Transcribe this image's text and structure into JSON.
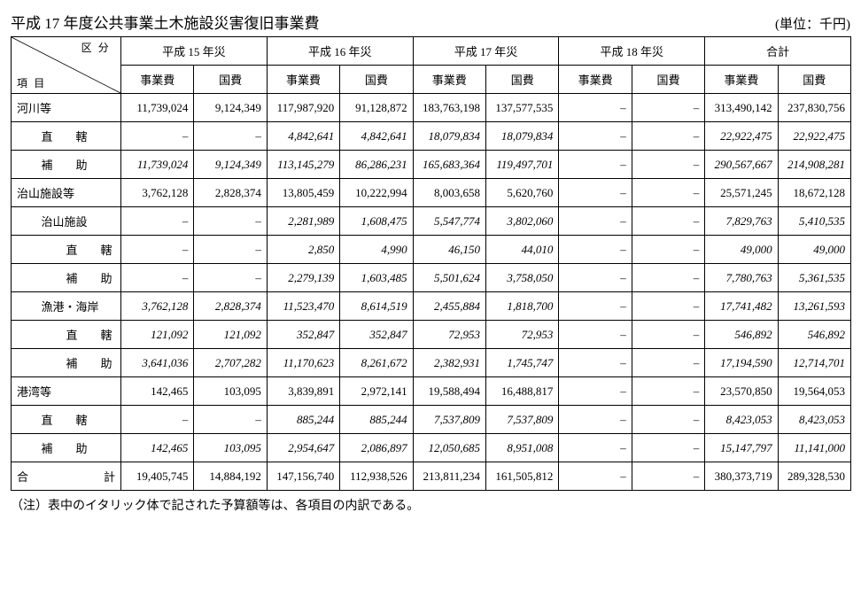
{
  "title": "平成 17 年度公共事業土木施設災害復旧事業費",
  "unit": "(単位：千円)",
  "diag_tr": "区分",
  "diag_bl": "項目",
  "year_headers": [
    "平成 15 年災",
    "平成 16 年災",
    "平成 17 年災",
    "平成 18 年災",
    "合計"
  ],
  "sub_headers": [
    "事業費",
    "国費",
    "事業費",
    "国費",
    "事業費",
    "国費",
    "事業費",
    "国費",
    "事業費",
    "国費"
  ],
  "rows": [
    {
      "stub_span": 3,
      "label": "河川等",
      "italic": false,
      "cells": [
        "11,739,024",
        "9,124,349",
        "117,987,920",
        "91,128,872",
        "183,763,198",
        "137,577,535",
        "–",
        "–",
        "313,490,142",
        "237,830,756"
      ]
    },
    {
      "stub_indent": 1,
      "stub_span": 2,
      "label": "直　　轄",
      "italic": true,
      "cells": [
        "–",
        "–",
        "4,842,641",
        "4,842,641",
        "18,079,834",
        "18,079,834",
        "–",
        "–",
        "22,922,475",
        "22,922,475"
      ]
    },
    {
      "stub_indent": 1,
      "stub_span": 2,
      "label": "補　　助",
      "italic": true,
      "cells": [
        "11,739,024",
        "9,124,349",
        "113,145,279",
        "86,286,231",
        "165,683,364",
        "119,497,701",
        "–",
        "–",
        "290,567,667",
        "214,908,281"
      ]
    },
    {
      "stub_span": 3,
      "label": "治山施設等",
      "italic": false,
      "cells": [
        "3,762,128",
        "2,828,374",
        "13,805,459",
        "10,222,994",
        "8,003,658",
        "5,620,760",
        "–",
        "–",
        "25,571,245",
        "18,672,128"
      ]
    },
    {
      "stub_indent": 1,
      "stub_span": 2,
      "label": "治山施設",
      "italic": true,
      "cells": [
        "–",
        "–",
        "2,281,989",
        "1,608,475",
        "5,547,774",
        "3,802,060",
        "–",
        "–",
        "7,829,763",
        "5,410,535"
      ]
    },
    {
      "stub_indent": 2,
      "stub_span": 1,
      "label": "直　　轄",
      "italic": true,
      "cells": [
        "–",
        "–",
        "2,850",
        "4,990",
        "46,150",
        "44,010",
        "–",
        "–",
        "49,000",
        "49,000"
      ]
    },
    {
      "stub_indent": 2,
      "stub_span": 1,
      "label": "補　　助",
      "italic": true,
      "cells": [
        "–",
        "–",
        "2,279,139",
        "1,603,485",
        "5,501,624",
        "3,758,050",
        "–",
        "–",
        "7,780,763",
        "5,361,535"
      ]
    },
    {
      "stub_indent": 1,
      "stub_span": 2,
      "label": "漁港・海岸",
      "italic": true,
      "cells": [
        "3,762,128",
        "2,828,374",
        "11,523,470",
        "8,614,519",
        "2,455,884",
        "1,818,700",
        "–",
        "–",
        "17,741,482",
        "13,261,593"
      ]
    },
    {
      "stub_indent": 2,
      "stub_span": 1,
      "label": "直　　轄",
      "italic": true,
      "cells": [
        "121,092",
        "121,092",
        "352,847",
        "352,847",
        "72,953",
        "72,953",
        "–",
        "–",
        "546,892",
        "546,892"
      ]
    },
    {
      "stub_indent": 2,
      "stub_span": 1,
      "label": "補　　助",
      "italic": true,
      "cells": [
        "3,641,036",
        "2,707,282",
        "11,170,623",
        "8,261,672",
        "2,382,931",
        "1,745,747",
        "–",
        "–",
        "17,194,590",
        "12,714,701"
      ]
    },
    {
      "stub_span": 3,
      "label": "港湾等",
      "italic": false,
      "cells": [
        "142,465",
        "103,095",
        "3,839,891",
        "2,972,141",
        "19,588,494",
        "16,488,817",
        "–",
        "–",
        "23,570,850",
        "19,564,053"
      ]
    },
    {
      "stub_indent": 1,
      "stub_span": 2,
      "label": "直　　轄",
      "italic": true,
      "cells": [
        "–",
        "–",
        "885,244",
        "885,244",
        "7,537,809",
        "7,537,809",
        "–",
        "–",
        "8,423,053",
        "8,423,053"
      ]
    },
    {
      "stub_indent": 1,
      "stub_span": 2,
      "label": "補　　助",
      "italic": true,
      "cells": [
        "142,465",
        "103,095",
        "2,954,647",
        "2,086,897",
        "12,050,685",
        "8,951,008",
        "–",
        "–",
        "15,147,797",
        "11,141,000"
      ]
    },
    {
      "stub_span": 3,
      "label": "合　　　計",
      "italic": false,
      "justify": true,
      "cells": [
        "19,405,745",
        "14,884,192",
        "147,156,740",
        "112,938,526",
        "213,811,234",
        "161,505,812",
        "–",
        "–",
        "380,373,719",
        "289,328,530"
      ]
    }
  ],
  "note": "（注）表中のイタリック体で記された予算額等は、各項目の内訳である。"
}
